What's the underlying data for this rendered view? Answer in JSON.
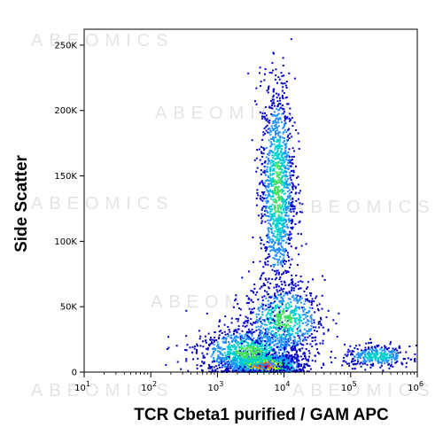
{
  "chart_data": {
    "type": "scatter",
    "subtype": "flow-cytometry density dot plot",
    "xlabel": "TCR Cbeta1 purified / GAM APC",
    "ylabel": "Side Scatter",
    "x_scale": "log",
    "xlim": [
      10,
      1000000
    ],
    "y_scale": "linear",
    "ylim": [
      0,
      262144
    ],
    "x_ticks": [
      10,
      100,
      1000,
      10000,
      100000,
      1000000
    ],
    "x_tick_base": "10",
    "x_tick_exponents": [
      "1",
      "2",
      "3",
      "4",
      "5",
      "6"
    ],
    "y_ticks": [
      0,
      50000,
      100000,
      150000,
      200000,
      250000
    ],
    "y_tick_labels": [
      "0",
      "50K",
      "100K",
      "150K",
      "200K",
      "250K"
    ],
    "colormap": [
      "#0000c8",
      "#1e90ff",
      "#00d0d0",
      "#40e060",
      "#ffff00",
      "#ff8000",
      "#ff0000"
    ],
    "populations": [
      {
        "x_center": 5000,
        "y_center": 5000,
        "x_spread_log": 0.25,
        "y_spread": 4000,
        "count": 1500,
        "density": "high"
      },
      {
        "x_center": 3000,
        "y_center": 15000,
        "x_spread_log": 0.4,
        "y_spread": 10000,
        "count": 1000,
        "density": "medium"
      },
      {
        "x_center": 10000,
        "y_center": 40000,
        "x_spread_log": 0.3,
        "y_spread": 14000,
        "count": 700,
        "density": "medium"
      },
      {
        "x_center": 8000,
        "y_center": 140000,
        "x_spread_log": 0.13,
        "y_spread": 42000,
        "count": 1300,
        "density": "medium"
      },
      {
        "x_center": 250000,
        "y_center": 12000,
        "x_spread_log": 0.25,
        "y_spread": 4000,
        "count": 350,
        "density": "low"
      }
    ],
    "legend": "none",
    "grid": false
  },
  "watermark": {
    "text": "ABEOMICS"
  }
}
